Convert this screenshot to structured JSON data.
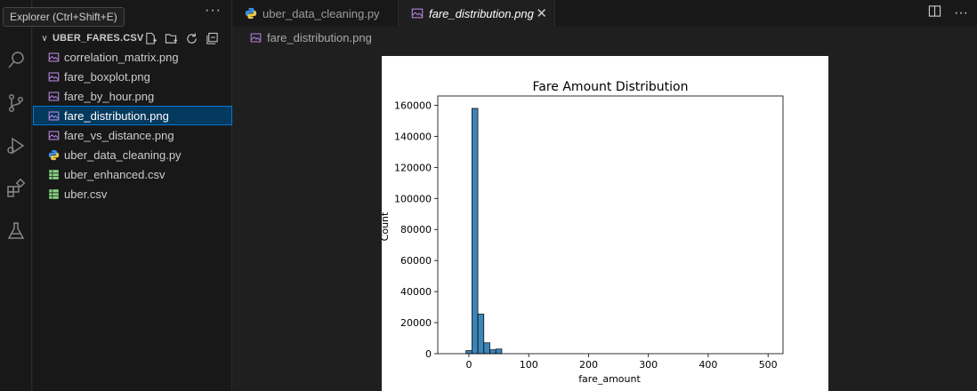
{
  "tooltip": "Explorer (Ctrl+Shift+E)",
  "explorer": {
    "more_label": "···",
    "folder_title": "UBER_FARES.CSV",
    "files": [
      {
        "name": "correlation_matrix.png",
        "type": "image",
        "selected": false
      },
      {
        "name": "fare_boxplot.png",
        "type": "image",
        "selected": false
      },
      {
        "name": "fare_by_hour.png",
        "type": "image",
        "selected": false
      },
      {
        "name": "fare_distribution.png",
        "type": "image",
        "selected": true
      },
      {
        "name": "fare_vs_distance.png",
        "type": "image",
        "selected": false
      },
      {
        "name": "uber_data_cleaning.py",
        "type": "python",
        "selected": false
      },
      {
        "name": "uber_enhanced.csv",
        "type": "csv",
        "selected": false
      },
      {
        "name": "uber.csv",
        "type": "csv",
        "selected": false
      }
    ]
  },
  "tabs": [
    {
      "label": "uber_data_cleaning.py",
      "active": false,
      "icon": "python-icon"
    },
    {
      "label": "fare_distribution.png",
      "active": true,
      "icon": "image-icon"
    }
  ],
  "breadcrumb": {
    "label": "fare_distribution.png"
  },
  "colors": {
    "accent": "#0078d4",
    "selection": "#04395e",
    "image_icon": "#b180d7",
    "python_icon": "#3b8eea",
    "csv_icon": "#89d185",
    "bar_fill": "#3d84b8"
  },
  "chart_data": {
    "type": "bar",
    "title": "Fare Amount Distribution",
    "xlabel": "fare_amount",
    "ylabel": "Count",
    "xlim": [
      -52,
      525
    ],
    "ylim": [
      0,
      166000
    ],
    "x_ticks": [
      0,
      100,
      200,
      300,
      400,
      500
    ],
    "y_ticks": [
      0,
      20000,
      40000,
      60000,
      80000,
      100000,
      120000,
      140000,
      160000
    ],
    "bin_width": 10,
    "bins": [
      {
        "start": -5,
        "count": 2000
      },
      {
        "start": 5,
        "count": 158000
      },
      {
        "start": 15,
        "count": 25500
      },
      {
        "start": 25,
        "count": 7000
      },
      {
        "start": 35,
        "count": 2500
      },
      {
        "start": 45,
        "count": 3000
      }
    ],
    "grid": false
  }
}
